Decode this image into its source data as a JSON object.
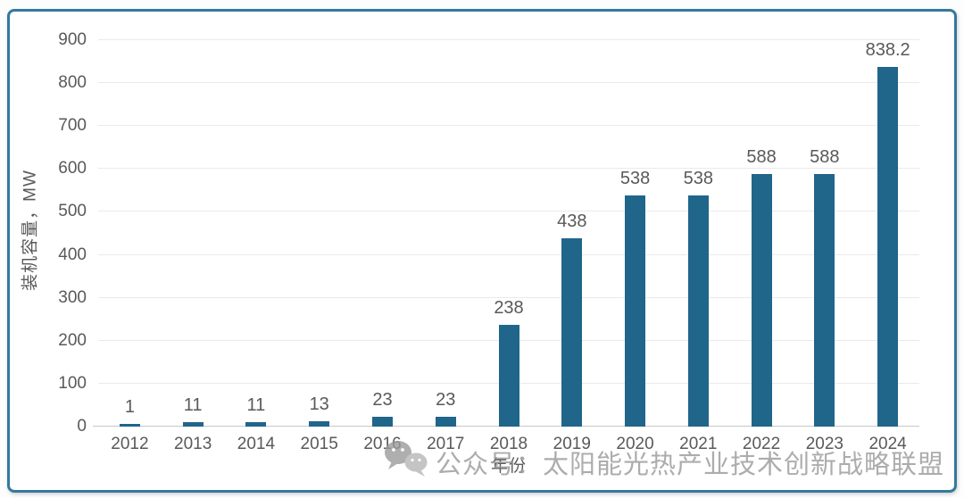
{
  "chart_data": {
    "type": "bar",
    "title": "",
    "categories": [
      "2012",
      "2013",
      "2014",
      "2015",
      "2016",
      "2017",
      "2018",
      "2019",
      "2020",
      "2021",
      "2022",
      "2023",
      "2024"
    ],
    "values": [
      1,
      11,
      11,
      13,
      23,
      23,
      238,
      438,
      538,
      538,
      588,
      588,
      838.2
    ],
    "data_labels": [
      "1",
      "11",
      "11",
      "13",
      "23",
      "23",
      "238",
      "438",
      "538",
      "538",
      "588",
      "588",
      "838.2"
    ],
    "xlabel": "年份",
    "ylabel": "装机容量，MW",
    "ylim": [
      0,
      900
    ],
    "yticks": [
      0,
      100,
      200,
      300,
      400,
      500,
      600,
      700,
      800,
      900
    ],
    "grid": "horizontal",
    "legend": "none"
  },
  "watermark": {
    "icon": "wechat-icon",
    "text": "公众号：太阳能光热产业技术创新战略联盟"
  },
  "colors": {
    "bar": "#20658A",
    "frame_border": "#35799D",
    "gridline": "#EAEAEA",
    "axis_line": "#C7C7C7",
    "tick_text": "#595959",
    "watermark_text": "#9E9E9E"
  }
}
